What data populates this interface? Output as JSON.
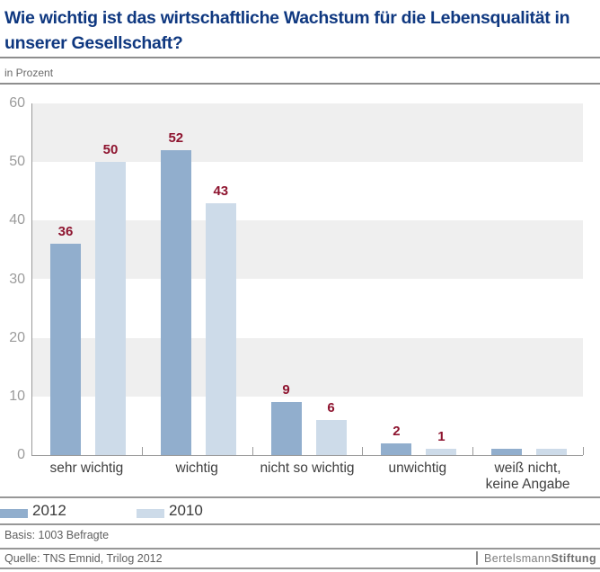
{
  "header": {
    "title_lines": [
      "Wie wichtig ist das wirtschaftliche Wachstum für die Lebensqualität in",
      "unserer Gesellschaft?"
    ],
    "unit_label": "in Prozent"
  },
  "chart_data": {
    "type": "bar",
    "title": "Wie wichtig ist das wirtschaftliche Wachstum für die Lebensqualität in unserer Gesellschaft?",
    "unit": "Prozent",
    "categories": [
      "sehr wichtig",
      "wichtig",
      "nicht so wichtig",
      "unwichtig",
      "weiß nicht,\nkeine Angabe"
    ],
    "series": [
      {
        "name": "2012",
        "color": "#91aecd",
        "values": [
          36,
          52,
          9,
          2,
          1
        ],
        "data_labels": [
          "36",
          "52",
          "9",
          "2",
          ""
        ]
      },
      {
        "name": "2010",
        "color": "#cddbe9",
        "values": [
          50,
          43,
          6,
          1,
          1
        ],
        "data_labels": [
          "50",
          "43",
          "6",
          "1",
          ""
        ]
      }
    ],
    "ylim": [
      0,
      60
    ],
    "yticks": [
      0,
      10,
      20,
      30,
      40,
      50,
      60
    ],
    "band_color": "#efefef",
    "data_label_color": "#8e142f",
    "grid": "alternating horizontal bands",
    "legend_position": "bottom-left"
  },
  "footer": {
    "basis": "Basis: 1003 Befragte",
    "source": "Quelle: TNS Emnid, Trilog 2012",
    "logo_regular": "Bertelsmann",
    "logo_bold": "Stiftung"
  }
}
